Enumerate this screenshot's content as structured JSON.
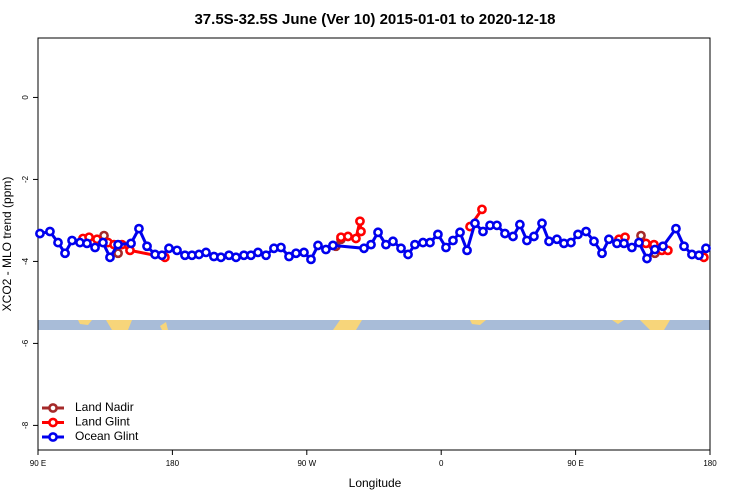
{
  "chart_data": {
    "type": "line",
    "title": "37.5S-32.5S June (Ver 10)   2015-01-01 to 2020-12-18",
    "x_label": "Longitude",
    "y_label": "XCO2 - MLO trend (ppm)",
    "xlim": [
      90,
      540
    ],
    "ylim": [
      -8.6,
      1.45
    ],
    "xticks": [
      {
        "value": 90,
        "label": "90 E"
      },
      {
        "value": 180,
        "label": "180"
      },
      {
        "value": 270,
        "label": "90 W"
      },
      {
        "value": 360,
        "label": "0"
      },
      {
        "value": 450,
        "label": "90 E"
      },
      {
        "value": 540,
        "label": "180"
      }
    ],
    "yticks": [
      0,
      -2,
      -4,
      -6,
      -8
    ],
    "legend": "bottom-left",
    "series": [
      {
        "name": "Land Nadir",
        "color": "#a52a2a",
        "x": [
          134.2,
          143.6,
          null,
          289.5,
          292.9,
          null,
          493.8,
          503.1
        ],
        "values": [
          -3.37,
          -3.8,
          null,
          -3.63,
          -3.46,
          null,
          -3.37,
          -3.8
        ]
      },
      {
        "name": "Land Glint",
        "color": "#ff0000",
        "x": [
          120.1,
          124.2,
          129.5,
          136.9,
          140.9,
          146.2,
          151.6,
          175.0,
          null,
          292.9,
          297.6,
          302.9,
          305.6,
          306.3,
          null,
          379.3,
          387.3,
          null,
          479.0,
          483.1,
          null,
          497.1,
          502.5,
          507.8,
          511.8,
          null,
          535.9
        ],
        "values": [
          -3.44,
          -3.41,
          -3.46,
          -3.54,
          -3.59,
          -3.59,
          -3.73,
          -3.9,
          null,
          -3.41,
          -3.39,
          -3.44,
          -3.02,
          -3.27,
          null,
          -3.15,
          -2.73,
          null,
          -3.46,
          -3.41,
          null,
          -3.56,
          -3.59,
          -3.73,
          -3.73,
          null,
          -3.9
        ]
      },
      {
        "name": "Ocean Glint",
        "color": "#0000ee",
        "x": [
          91.3,
          98.0,
          103.4,
          108.1,
          112.8,
          118.1,
          122.8,
          128.2,
          133.5,
          138.2,
          143.6,
          152.3,
          157.6,
          163.0,
          168.4,
          173.0,
          177.7,
          183.1,
          188.4,
          193.1,
          197.8,
          202.5,
          207.8,
          212.5,
          217.9,
          222.6,
          227.9,
          232.6,
          237.3,
          242.7,
          248.0,
          252.7,
          258.1,
          262.8,
          268.1,
          272.8,
          277.5,
          282.8,
          287.5,
          308.3,
          313.0,
          317.7,
          323.0,
          327.7,
          333.1,
          337.8,
          342.4,
          347.8,
          352.5,
          357.8,
          363.2,
          367.9,
          372.6,
          377.3,
          382.6,
          388.0,
          392.7,
          397.3,
          402.7,
          408.1,
          412.7,
          417.4,
          422.1,
          427.5,
          432.2,
          437.5,
          442.2,
          446.9,
          451.6,
          457.0,
          462.3,
          467.7,
          472.3,
          477.7,
          482.4,
          487.7,
          492.4,
          497.8,
          503.1,
          508.5,
          517.2,
          522.6,
          527.9,
          532.6,
          537.3
        ],
        "values": [
          -3.32,
          -3.27,
          -3.54,
          -3.8,
          -3.49,
          -3.54,
          -3.56,
          -3.66,
          -3.54,
          -3.9,
          -3.59,
          -3.56,
          -3.2,
          -3.63,
          -3.83,
          -3.85,
          -3.68,
          -3.73,
          -3.85,
          -3.85,
          -3.83,
          -3.78,
          -3.88,
          -3.9,
          -3.85,
          -3.9,
          -3.85,
          -3.85,
          -3.78,
          -3.85,
          -3.68,
          -3.66,
          -3.88,
          -3.8,
          -3.78,
          -3.95,
          -3.61,
          -3.71,
          -3.61,
          -3.68,
          -3.59,
          -3.29,
          -3.59,
          -3.51,
          -3.68,
          -3.83,
          -3.59,
          -3.54,
          -3.54,
          -3.34,
          -3.66,
          -3.49,
          -3.29,
          -3.73,
          -3.07,
          -3.27,
          -3.12,
          -3.12,
          -3.32,
          -3.39,
          -3.1,
          -3.49,
          -3.39,
          -3.07,
          -3.51,
          -3.46,
          -3.56,
          -3.54,
          -3.34,
          -3.27,
          -3.51,
          -3.8,
          -3.46,
          -3.56,
          -3.56,
          -3.66,
          -3.54,
          -3.93,
          -3.71,
          -3.63,
          -3.2,
          -3.63,
          -3.83,
          -3.85,
          -3.68
        ]
      }
    ]
  }
}
